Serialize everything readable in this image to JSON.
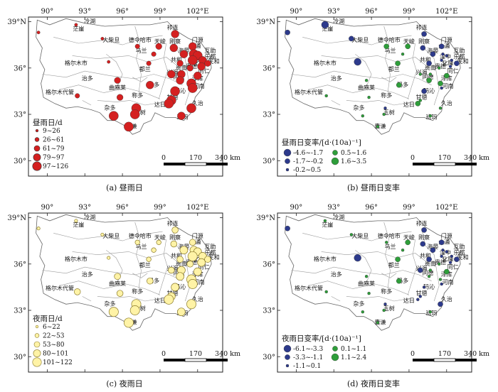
{
  "axes": {
    "lon_ticks": [
      "90°",
      "93°",
      "96°",
      "99°",
      "102°E"
    ],
    "lat_ticks": [
      "39°N",
      "36°",
      "33°",
      "30°"
    ]
  },
  "scale_bar": {
    "labels": [
      "0",
      "170",
      "340 km"
    ]
  },
  "city_names": [
    "茫崖",
    "冷湖",
    "大柴旦",
    "德令哈市",
    "乌兰",
    "天峻",
    "祁连",
    "刚察",
    "门源",
    "大通",
    "海晏",
    "互助",
    "湟中",
    "乐都",
    "民和",
    "共和",
    "化隆",
    "贵南",
    "贵德",
    "同仁",
    "兴海",
    "同德",
    "泽库",
    "格尔木市",
    "都兰",
    "治多",
    "曲麻莱",
    "玛多",
    "格尔木代管",
    "杂多",
    "称多",
    "玛沁",
    "甘德",
    "达日",
    "河南",
    "久治",
    "玉树",
    "囊谦",
    "班玛"
  ],
  "panels": [
    {
      "caption": "(a) 昼雨日",
      "legend_title": "昼雨日/d",
      "legend": [
        "9~26",
        "26~61",
        "61~79",
        "79~97",
        "97~126"
      ],
      "colors": {
        "pos": "#d42020"
      }
    },
    {
      "caption": "(b) 昼雨日变率",
      "legend_title": "昼雨日变率/[d·(10a)⁻¹]",
      "legend_left": [
        "-4.6~-1.7",
        "-1.7~-0.2",
        "-0.2~0.5"
      ],
      "legend_right": [
        "0.5~1.6",
        "1.6~3.5"
      ],
      "colors": {
        "neg": "#2d3a8c",
        "pos": "#2e9e3a"
      }
    },
    {
      "caption": "(c) 夜雨日",
      "legend_title": "夜雨日/d",
      "legend": [
        "6~22",
        "22~53",
        "53~80",
        "80~101",
        "101~122"
      ],
      "colors": {
        "pos": "#fff3a6"
      }
    },
    {
      "caption": "(d) 夜雨日变率",
      "legend_title": "夜雨日变率/[d·(10a)⁻¹]",
      "legend_left": [
        "-6.1~-3.3",
        "-3.3~-1.1",
        "-1.1~0.1"
      ],
      "legend_right": [
        "0.1~1.1",
        "1.1~2.4"
      ],
      "colors": {
        "neg": "#2d3a8c",
        "pos": "#2e9e3a"
      }
    }
  ],
  "stations": [
    {
      "name": "茫崖",
      "lon": 89.3,
      "lat": 38.3,
      "a": 1,
      "b": -2,
      "c": 1,
      "d": -2
    },
    {
      "name": "冷湖",
      "lon": 92.3,
      "lat": 38.8,
      "a": 1,
      "b": -3,
      "c": 1,
      "d": 1
    },
    {
      "name": "大柴旦",
      "lon": 94.4,
      "lat": 37.9,
      "a": 1,
      "b": -2,
      "c": 1,
      "d": 1
    },
    {
      "name": "德令哈市",
      "lon": 97.2,
      "lat": 37.4,
      "a": 2,
      "b": 2,
      "c": 2,
      "d": 1
    },
    {
      "name": "乌兰",
      "lon": 98.5,
      "lat": 36.9,
      "a": 2,
      "b": 1,
      "c": 2,
      "d": 1
    },
    {
      "name": "天峻",
      "lon": 98.9,
      "lat": 37.4,
      "a": 3,
      "b": 2,
      "c": 2,
      "d": 2
    },
    {
      "name": "祁连",
      "lon": 100.2,
      "lat": 38.2,
      "a": 4,
      "b": -2,
      "c": 3,
      "d": -2
    },
    {
      "name": "刚察",
      "lon": 100.1,
      "lat": 37.3,
      "a": 4,
      "b": -2,
      "c": 3,
      "d": -2
    },
    {
      "name": "门源",
      "lon": 101.6,
      "lat": 37.4,
      "a": 4,
      "b": -2,
      "c": 3,
      "d": -2
    },
    {
      "name": "大通",
      "lon": 101.7,
      "lat": 36.9,
      "a": 5,
      "b": -1,
      "c": 4,
      "d": -1
    },
    {
      "name": "海晏",
      "lon": 100.9,
      "lat": 36.9,
      "a": 4,
      "b": -2,
      "c": 4,
      "d": -2
    },
    {
      "name": "互助",
      "lon": 102.0,
      "lat": 36.8,
      "a": 5,
      "b": -1,
      "c": 4,
      "d": -1
    },
    {
      "name": "湟中",
      "lon": 101.6,
      "lat": 36.5,
      "a": 5,
      "b": -1,
      "c": 5,
      "d": -1
    },
    {
      "name": "乐都",
      "lon": 102.4,
      "lat": 36.5,
      "a": 4,
      "b": -1,
      "c": 4,
      "d": -1
    },
    {
      "name": "民和",
      "lon": 102.8,
      "lat": 36.3,
      "a": 3,
      "b": -2,
      "c": 3,
      "d": -2
    },
    {
      "name": "共和",
      "lon": 100.6,
      "lat": 36.3,
      "a": 3,
      "b": -2,
      "c": 3,
      "d": -2
    },
    {
      "name": "化隆",
      "lon": 102.3,
      "lat": 36.1,
      "a": 4,
      "b": -1,
      "c": 4,
      "d": -1
    },
    {
      "name": "贵南",
      "lon": 100.7,
      "lat": 35.6,
      "a": 4,
      "b": 1,
      "c": 4,
      "d": 1
    },
    {
      "name": "贵德",
      "lon": 101.4,
      "lat": 36.0,
      "a": 3,
      "b": 1,
      "c": 3,
      "d": 1
    },
    {
      "name": "同仁",
      "lon": 102.0,
      "lat": 35.5,
      "a": 4,
      "b": 2,
      "c": 4,
      "d": 2
    },
    {
      "name": "兴海",
      "lon": 99.9,
      "lat": 35.6,
      "a": 4,
      "b": 1,
      "c": 3,
      "d": -2
    },
    {
      "name": "同德",
      "lon": 100.6,
      "lat": 35.2,
      "a": 4,
      "b": 2,
      "c": 4,
      "d": 1
    },
    {
      "name": "泽库",
      "lon": 101.5,
      "lat": 35.0,
      "a": 5,
      "b": 2,
      "c": 5,
      "d": 1
    },
    {
      "name": "格尔木市",
      "lon": 94.9,
      "lat": 36.4,
      "a": 1,
      "b": -3,
      "c": 1,
      "d": -3
    },
    {
      "name": "都兰",
      "lon": 98.1,
      "lat": 36.3,
      "a": 2,
      "b": 2,
      "c": 2,
      "d": 2
    },
    {
      "name": "治多",
      "lon": 95.6,
      "lat": 35.2,
      "a": 3,
      "b": 1,
      "c": 3,
      "d": 1
    },
    {
      "name": "曲麻莱",
      "lon": 95.8,
      "lat": 34.1,
      "a": 3,
      "b": 1,
      "c": 3,
      "d": 1
    },
    {
      "name": "玛多",
      "lon": 98.2,
      "lat": 34.9,
      "a": 4,
      "b": 2,
      "c": 3,
      "d": 2
    },
    {
      "name": "格尔木代管",
      "lon": 92.4,
      "lat": 34.2,
      "a": 2,
      "b": 1,
      "c": 3,
      "d": 1
    },
    {
      "name": "杂多",
      "lon": 95.3,
      "lat": 32.9,
      "a": 5,
      "b": 1,
      "c": 5,
      "d": 1
    },
    {
      "name": "称多",
      "lon": 97.1,
      "lat": 33.4,
      "a": 5,
      "b": -1,
      "c": 5,
      "d": -1
    },
    {
      "name": "玛沁",
      "lon": 100.2,
      "lat": 34.5,
      "a": 5,
      "b": -2,
      "c": 4,
      "d": -1
    },
    {
      "name": "甘德",
      "lon": 99.9,
      "lat": 33.9,
      "a": 5,
      "b": 1,
      "c": 4,
      "d": -1
    },
    {
      "name": "达日",
      "lon": 99.7,
      "lat": 33.7,
      "a": 5,
      "b": 2,
      "c": 5,
      "d": -1
    },
    {
      "name": "河南",
      "lon": 101.6,
      "lat": 34.7,
      "a": 5,
      "b": -1,
      "c": 5,
      "d": -1
    },
    {
      "name": "久治",
      "lon": 101.5,
      "lat": 33.4,
      "a": 5,
      "b": 1,
      "c": 5,
      "d": -2
    },
    {
      "name": "玉树",
      "lon": 97.0,
      "lat": 33.0,
      "a": 5,
      "b": 1,
      "c": 5,
      "d": 1
    },
    {
      "name": "囊谦",
      "lon": 96.5,
      "lat": 32.2,
      "a": 5,
      "b": 1,
      "c": 5,
      "d": 1
    },
    {
      "name": "班玛",
      "lon": 100.7,
      "lat": 32.9,
      "a": 4,
      "b": 1,
      "c": 4,
      "d": 1
    }
  ]
}
